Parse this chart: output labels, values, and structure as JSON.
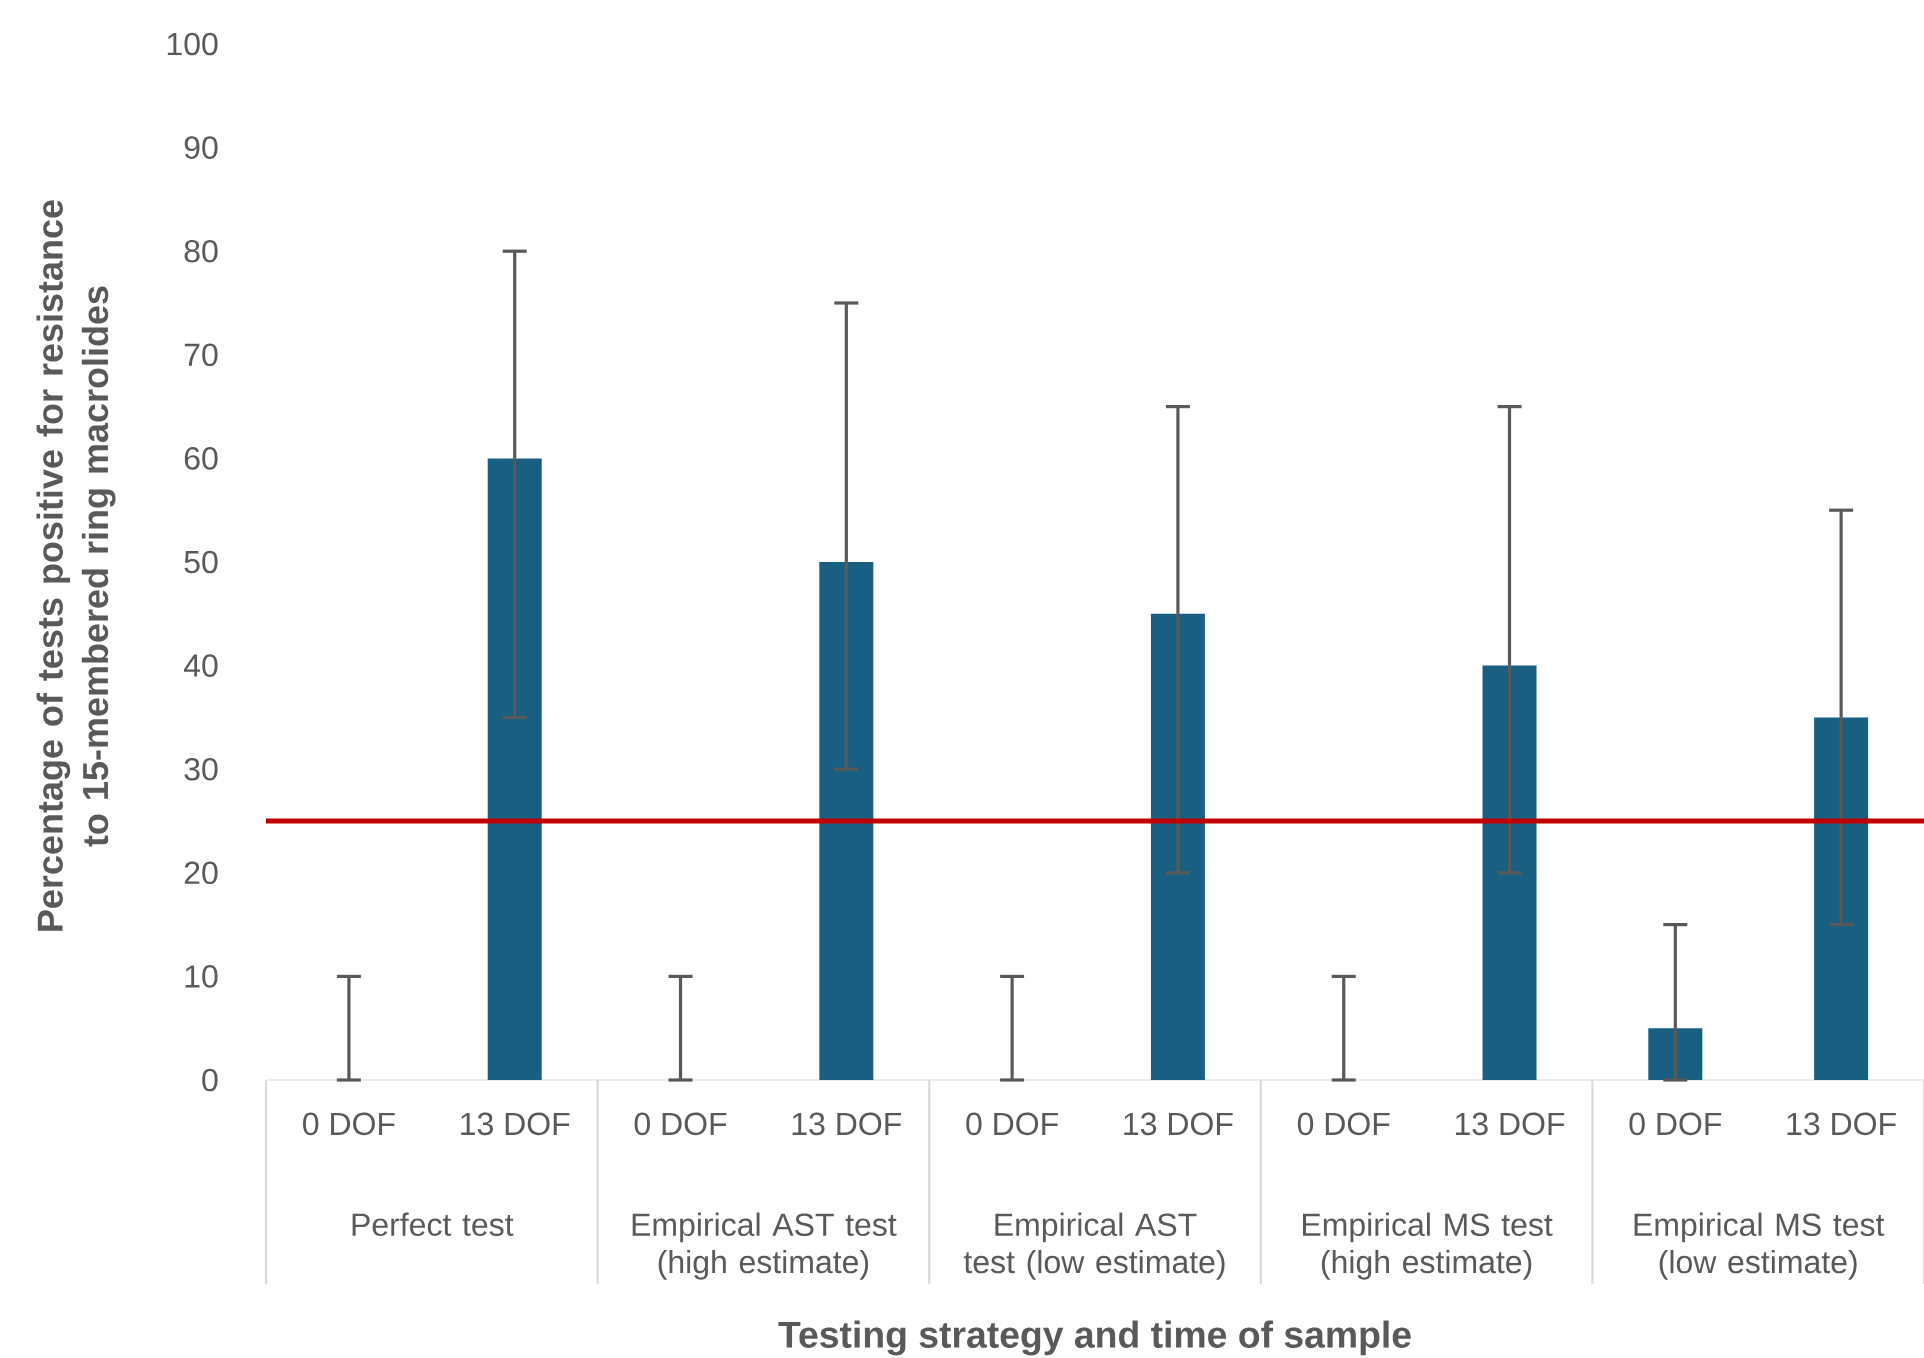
{
  "chart_data": {
    "type": "bar",
    "categories": [
      "0 DOF",
      "13 DOF",
      "0 DOF",
      "13 DOF",
      "0 DOF",
      "13 DOF",
      "0 DOF",
      "13 DOF",
      "0 DOF",
      "13 DOF"
    ],
    "values": [
      0,
      60,
      0,
      50,
      0,
      45,
      0,
      40,
      5,
      35
    ],
    "errors": [
      [
        0,
        10
      ],
      [
        35,
        80
      ],
      [
        0,
        10
      ],
      [
        30,
        75
      ],
      [
        0,
        10
      ],
      [
        20,
        65
      ],
      [
        0,
        10
      ],
      [
        20,
        65
      ],
      [
        0,
        15
      ],
      [
        15,
        55
      ]
    ],
    "color": "#185f82",
    "ylim": [
      0,
      100
    ],
    "yticks": [
      0,
      10,
      20,
      30,
      40,
      50,
      60,
      70,
      80,
      90,
      100
    ],
    "xlabel": "Testing strategy and time of sample",
    "ylabel": "Percentage of tests positive for resistance to 15-membered ring macrolides",
    "annotations": [
      "Perfect test",
      "Empirical AST test (high estimate)",
      "Empirical AST test (low estimate)",
      "Empirical MS test (high estimate)",
      "Empirical MS test (low estimate)"
    ],
    "ref_lines": [
      {
        "axis": "y",
        "value": 25,
        "color": "#c00000"
      }
    ]
  }
}
